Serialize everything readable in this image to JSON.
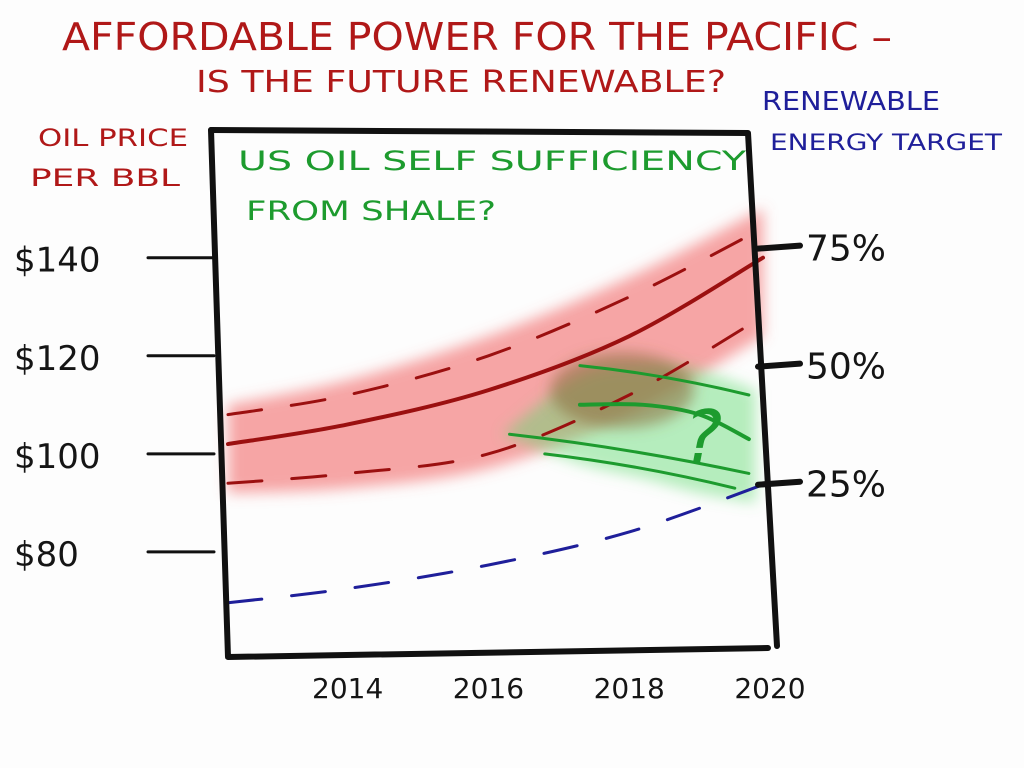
{
  "chart_data": {
    "type": "area",
    "title": "AFFORDABLE POWER FOR THE PACIFIC –",
    "subtitle": "IS THE FUTURE RENEWABLE?",
    "annotation": [
      "US OIL SELF SUFFICIENCY",
      "FROM SHALE?"
    ],
    "question_mark": "?",
    "left_axis": {
      "label": [
        "OIL PRICE",
        "PER BBL"
      ],
      "ticks": [
        "$140",
        "$120",
        "$100",
        "$80"
      ],
      "tick_values": [
        140,
        120,
        100,
        80
      ],
      "ylim": [
        60,
        164
      ]
    },
    "right_axis": {
      "label": [
        "RENEWABLE",
        "ENERGY TARGET"
      ],
      "ticks": [
        "75%",
        "50%",
        "25%"
      ],
      "tick_values": [
        75,
        50,
        25
      ],
      "ylim": [
        -10,
        98
      ]
    },
    "x_axis": {
      "ticks": [
        "2014",
        "2016",
        "2018",
        "2020"
      ],
      "tick_values": [
        2014,
        2016,
        2018,
        2020
      ],
      "xlim": [
        2012.3,
        2020
      ]
    },
    "series": [
      {
        "axis": "left",
        "color": "#9b1010",
        "style": "solid",
        "x": [
          2012.3,
          2014,
          2016,
          2018,
          2019.9
        ],
        "y": [
          102,
          106,
          113,
          124,
          140
        ]
      },
      {
        "axis": "left",
        "color": "#9b1010",
        "style": "dashed",
        "x": [
          2012.3,
          2014,
          2016,
          2018,
          2019.9
        ],
        "y": [
          108,
          112,
          120,
          132,
          146
        ]
      },
      {
        "axis": "left",
        "color": "#9b1010",
        "style": "dashed",
        "x": [
          2012.3,
          2014,
          2016,
          2018,
          2019.9
        ],
        "y": [
          94,
          96,
          100,
          112,
          128
        ]
      },
      {
        "axis": "right",
        "color": "#1f1f9a",
        "style": "dashed",
        "x": [
          2012.3,
          2014,
          2016,
          2018,
          2019.9
        ],
        "y": [
          0,
          3,
          8,
          15,
          25
        ]
      },
      {
        "axis": "left",
        "color": "#1d9b2e",
        "style": "solid",
        "x": [
          2017.3,
          2018.2,
          2019.0,
          2019.7
        ],
        "y": [
          110,
          110,
          108,
          103
        ]
      }
    ],
    "bands": [
      {
        "axis": "left",
        "color": "#f26b6b",
        "x": [
          2012.3,
          2014,
          2016,
          2018,
          2019.9
        ],
        "upper": [
          110,
          115,
          124,
          136,
          150
        ],
        "lower": [
          92,
          93,
          97,
          108,
          124
        ]
      },
      {
        "axis": "left",
        "color": "#5fd96e",
        "x": [
          2016.2,
          2017.3,
          2018.2,
          2019.0,
          2019.8
        ],
        "upper": [
          104,
          116,
          118,
          117,
          113
        ],
        "lower": [
          104,
          98,
          95,
          92,
          90
        ]
      }
    ]
  }
}
